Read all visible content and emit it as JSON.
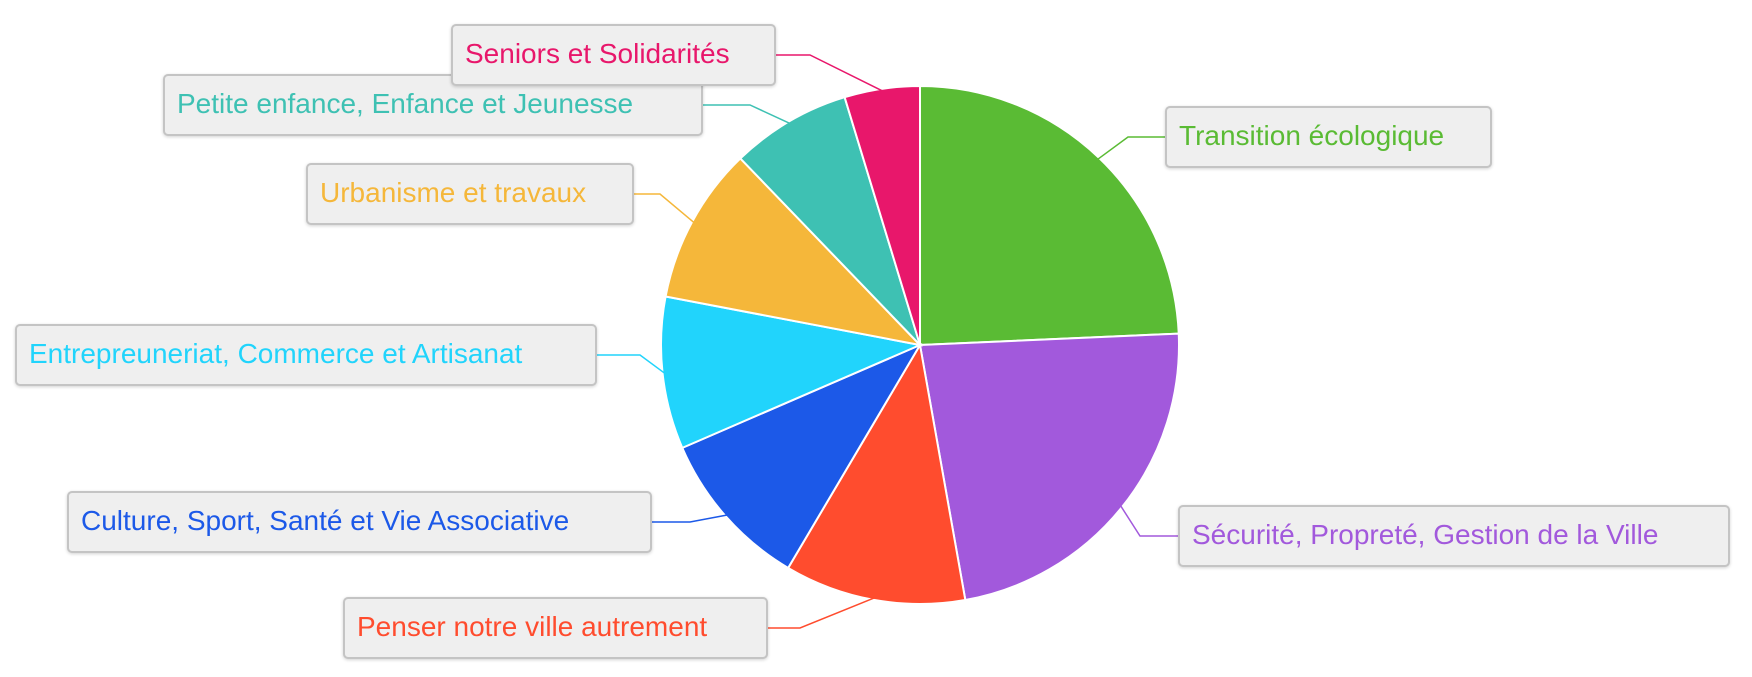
{
  "chart_data": {
    "type": "pie",
    "title": "",
    "start_angle_deg": 0,
    "direction": "clockwise",
    "slices": [
      {
        "label": "Transition écologique",
        "value": 24.3,
        "color": "#5abb34"
      },
      {
        "label": "Sécurité, Propreté, Gestion de la Ville",
        "value": 22.9,
        "color": "#a259dc"
      },
      {
        "label": "Penser notre ville autrement",
        "value": 11.3,
        "color": "#ff4c2e"
      },
      {
        "label": "Culture, Sport, Santé et Vie Associative",
        "value": 10.0,
        "color": "#1c59e8"
      },
      {
        "label": "Entrepreuneriat, Commerce et Artisanat",
        "value": 9.5,
        "color": "#21d4fc"
      },
      {
        "label": "Urbanisme et travaux",
        "value": 9.8,
        "color": "#f5b73a"
      },
      {
        "label": "Petite enfance, Enfance et Jeunesse",
        "value": 7.5,
        "color": "#3ec1b3"
      },
      {
        "label": "Seniors et Solidarités",
        "value": 4.7,
        "color": "#e8176b"
      }
    ],
    "legend": "none",
    "labels": "outside-boxes-with-leader-lines"
  }
}
